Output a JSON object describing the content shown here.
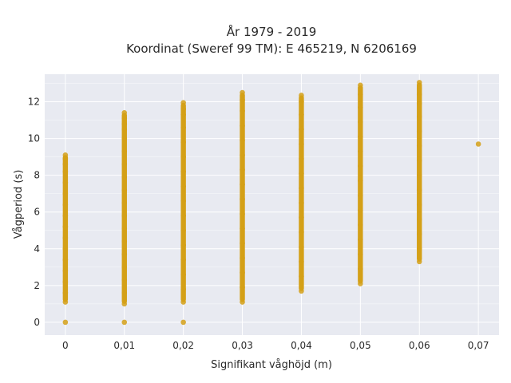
{
  "chart_data": {
    "type": "scatter",
    "title_line1": "År 1979 - 2019",
    "title_line2": "Koordinat (Sweref 99 TM): E 465219, N 6206169",
    "xlabel": "Signifikant våghöjd (m)",
    "ylabel": "Vågperiod (s)",
    "x_ticks": [
      {
        "value": 0,
        "label": "0"
      },
      {
        "value": 0.01,
        "label": "0,01"
      },
      {
        "value": 0.02,
        "label": "0,02"
      },
      {
        "value": 0.03,
        "label": "0,03"
      },
      {
        "value": 0.04,
        "label": "0,04"
      },
      {
        "value": 0.05,
        "label": "0,05"
      },
      {
        "value": 0.06,
        "label": "0,06"
      },
      {
        "value": 0.07,
        "label": "0,07"
      }
    ],
    "y_ticks": [
      {
        "value": 0,
        "label": "0"
      },
      {
        "value": 2,
        "label": "2"
      },
      {
        "value": 4,
        "label": "4"
      },
      {
        "value": 6,
        "label": "6"
      },
      {
        "value": 8,
        "label": "8"
      },
      {
        "value": 10,
        "label": "10"
      },
      {
        "value": 12,
        "label": "12"
      }
    ],
    "xlim": [
      -0.0035,
      0.0735
    ],
    "ylim": [
      -0.7,
      13.5
    ],
    "grid": true,
    "legend": "none",
    "colors": {
      "marker": "#D4A017",
      "plot_background": "#E8EAF1",
      "grid": "#FFFFFF"
    },
    "series": [
      {
        "points": [
          {
            "x": 0,
            "y": 0
          },
          {
            "x": 0,
            "y": 1.1
          },
          {
            "x": 0,
            "y": 1.6
          },
          {
            "x": 0,
            "y": 2.2
          },
          {
            "x": 0,
            "y": 2.8
          },
          {
            "x": 0,
            "y": 3.4
          },
          {
            "x": 0,
            "y": 4.0
          },
          {
            "x": 0,
            "y": 4.6
          },
          {
            "x": 0,
            "y": 5.2
          },
          {
            "x": 0,
            "y": 5.8
          },
          {
            "x": 0,
            "y": 6.4
          },
          {
            "x": 0,
            "y": 7.0
          },
          {
            "x": 0,
            "y": 7.6
          },
          {
            "x": 0,
            "y": 8.2
          },
          {
            "x": 0,
            "y": 8.6
          },
          {
            "x": 0,
            "y": 8.9
          },
          {
            "x": 0,
            "y": 9.1
          },
          {
            "x": 0.01,
            "y": 0
          },
          {
            "x": 0.01,
            "y": 1.0
          },
          {
            "x": 0.01,
            "y": 1.6
          },
          {
            "x": 0.01,
            "y": 2.3
          },
          {
            "x": 0.01,
            "y": 3.0
          },
          {
            "x": 0.01,
            "y": 3.7
          },
          {
            "x": 0.01,
            "y": 4.4
          },
          {
            "x": 0.01,
            "y": 5.1
          },
          {
            "x": 0.01,
            "y": 5.8
          },
          {
            "x": 0.01,
            "y": 6.5
          },
          {
            "x": 0.01,
            "y": 7.2
          },
          {
            "x": 0.01,
            "y": 7.9
          },
          {
            "x": 0.01,
            "y": 8.6
          },
          {
            "x": 0.01,
            "y": 9.3
          },
          {
            "x": 0.01,
            "y": 10.0
          },
          {
            "x": 0.01,
            "y": 10.5
          },
          {
            "x": 0.01,
            "y": 10.8
          },
          {
            "x": 0.01,
            "y": 11.1
          },
          {
            "x": 0.01,
            "y": 11.4
          },
          {
            "x": 0.02,
            "y": 0
          },
          {
            "x": 0.02,
            "y": 1.1
          },
          {
            "x": 0.02,
            "y": 1.8
          },
          {
            "x": 0.02,
            "y": 2.6
          },
          {
            "x": 0.02,
            "y": 3.4
          },
          {
            "x": 0.02,
            "y": 4.2
          },
          {
            "x": 0.02,
            "y": 5.0
          },
          {
            "x": 0.02,
            "y": 5.8
          },
          {
            "x": 0.02,
            "y": 6.6
          },
          {
            "x": 0.02,
            "y": 7.4
          },
          {
            "x": 0.02,
            "y": 8.2
          },
          {
            "x": 0.02,
            "y": 9.0
          },
          {
            "x": 0.02,
            "y": 9.8
          },
          {
            "x": 0.02,
            "y": 10.6
          },
          {
            "x": 0.02,
            "y": 11.3
          },
          {
            "x": 0.02,
            "y": 11.6
          },
          {
            "x": 0.02,
            "y": 11.95
          },
          {
            "x": 0.03,
            "y": 1.1
          },
          {
            "x": 0.03,
            "y": 1.9
          },
          {
            "x": 0.03,
            "y": 2.7
          },
          {
            "x": 0.03,
            "y": 3.5
          },
          {
            "x": 0.03,
            "y": 4.3
          },
          {
            "x": 0.03,
            "y": 5.1
          },
          {
            "x": 0.03,
            "y": 5.9
          },
          {
            "x": 0.03,
            "y": 6.7
          },
          {
            "x": 0.03,
            "y": 7.5
          },
          {
            "x": 0.03,
            "y": 8.3
          },
          {
            "x": 0.03,
            "y": 9.1
          },
          {
            "x": 0.03,
            "y": 9.9
          },
          {
            "x": 0.03,
            "y": 10.7
          },
          {
            "x": 0.03,
            "y": 11.5
          },
          {
            "x": 0.03,
            "y": 12.1
          },
          {
            "x": 0.03,
            "y": 12.5
          },
          {
            "x": 0.04,
            "y": 1.7
          },
          {
            "x": 0.04,
            "y": 2.5
          },
          {
            "x": 0.04,
            "y": 3.3
          },
          {
            "x": 0.04,
            "y": 4.1
          },
          {
            "x": 0.04,
            "y": 4.9
          },
          {
            "x": 0.04,
            "y": 5.7
          },
          {
            "x": 0.04,
            "y": 6.5
          },
          {
            "x": 0.04,
            "y": 7.3
          },
          {
            "x": 0.04,
            "y": 8.1
          },
          {
            "x": 0.04,
            "y": 8.9
          },
          {
            "x": 0.04,
            "y": 9.7
          },
          {
            "x": 0.04,
            "y": 10.5
          },
          {
            "x": 0.04,
            "y": 11.3
          },
          {
            "x": 0.04,
            "y": 12.0
          },
          {
            "x": 0.04,
            "y": 12.35
          },
          {
            "x": 0.05,
            "y": 2.1
          },
          {
            "x": 0.05,
            "y": 2.9
          },
          {
            "x": 0.05,
            "y": 3.7
          },
          {
            "x": 0.05,
            "y": 4.5
          },
          {
            "x": 0.05,
            "y": 5.3
          },
          {
            "x": 0.05,
            "y": 6.1
          },
          {
            "x": 0.05,
            "y": 6.9
          },
          {
            "x": 0.05,
            "y": 7.7
          },
          {
            "x": 0.05,
            "y": 8.5
          },
          {
            "x": 0.05,
            "y": 9.3
          },
          {
            "x": 0.05,
            "y": 10.1
          },
          {
            "x": 0.05,
            "y": 10.9
          },
          {
            "x": 0.05,
            "y": 11.7
          },
          {
            "x": 0.05,
            "y": 12.4
          },
          {
            "x": 0.05,
            "y": 12.9
          },
          {
            "x": 0.06,
            "y": 3.3
          },
          {
            "x": 0.06,
            "y": 4.0
          },
          {
            "x": 0.06,
            "y": 4.8
          },
          {
            "x": 0.06,
            "y": 5.6
          },
          {
            "x": 0.06,
            "y": 6.4
          },
          {
            "x": 0.06,
            "y": 7.2
          },
          {
            "x": 0.06,
            "y": 8.0
          },
          {
            "x": 0.06,
            "y": 8.8
          },
          {
            "x": 0.06,
            "y": 9.6
          },
          {
            "x": 0.06,
            "y": 10.4
          },
          {
            "x": 0.06,
            "y": 11.2
          },
          {
            "x": 0.06,
            "y": 11.9
          },
          {
            "x": 0.06,
            "y": 12.4
          },
          {
            "x": 0.06,
            "y": 12.7
          },
          {
            "x": 0.06,
            "y": 13.05
          },
          {
            "x": 0.07,
            "y": 9.7
          }
        ],
        "bands": [
          {
            "x": 0,
            "y_from": 1.1,
            "y_to": 9.1
          },
          {
            "x": 0.01,
            "y_from": 1.0,
            "y_to": 11.4
          },
          {
            "x": 0.02,
            "y_from": 1.1,
            "y_to": 11.95
          },
          {
            "x": 0.03,
            "y_from": 1.1,
            "y_to": 12.5
          },
          {
            "x": 0.04,
            "y_from": 1.7,
            "y_to": 12.35
          },
          {
            "x": 0.05,
            "y_from": 2.1,
            "y_to": 12.9
          },
          {
            "x": 0.06,
            "y_from": 3.3,
            "y_to": 13.05
          }
        ]
      }
    ]
  }
}
